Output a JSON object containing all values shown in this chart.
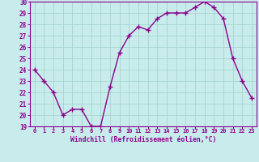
{
  "x": [
    0,
    1,
    2,
    3,
    4,
    5,
    6,
    7,
    8,
    9,
    10,
    11,
    12,
    13,
    14,
    15,
    16,
    17,
    18,
    19,
    20,
    21,
    22,
    23
  ],
  "y": [
    24,
    23,
    22,
    20,
    20.5,
    20.5,
    19,
    19,
    22.5,
    25.5,
    27,
    27.8,
    27.5,
    28.5,
    29,
    29,
    29,
    29.5,
    30,
    29.5,
    28.5,
    25,
    23,
    21.5
  ],
  "line_color": "#8B008B",
  "marker_color": "#8B008B",
  "bg_color": "#c8ecec",
  "grid_color": "#a8d4d4",
  "xlabel": "Windchill (Refroidissement éolien,°C)",
  "xlabel_color": "#8B008B",
  "tick_color": "#8B008B",
  "ylim": [
    19,
    30
  ],
  "xlim": [
    -0.5,
    23.5
  ],
  "yticks": [
    19,
    20,
    21,
    22,
    23,
    24,
    25,
    26,
    27,
    28,
    29,
    30
  ],
  "xticks": [
    0,
    1,
    2,
    3,
    4,
    5,
    6,
    7,
    8,
    9,
    10,
    11,
    12,
    13,
    14,
    15,
    16,
    17,
    18,
    19,
    20,
    21,
    22,
    23
  ],
  "xtick_labels": [
    "0",
    "1",
    "2",
    "3",
    "4",
    "5",
    "6",
    "7",
    "8",
    "9",
    "10",
    "11",
    "12",
    "13",
    "14",
    "15",
    "16",
    "17",
    "18",
    "19",
    "20",
    "21",
    "22",
    "23"
  ],
  "marker_size": 2.5,
  "line_width": 1.0
}
